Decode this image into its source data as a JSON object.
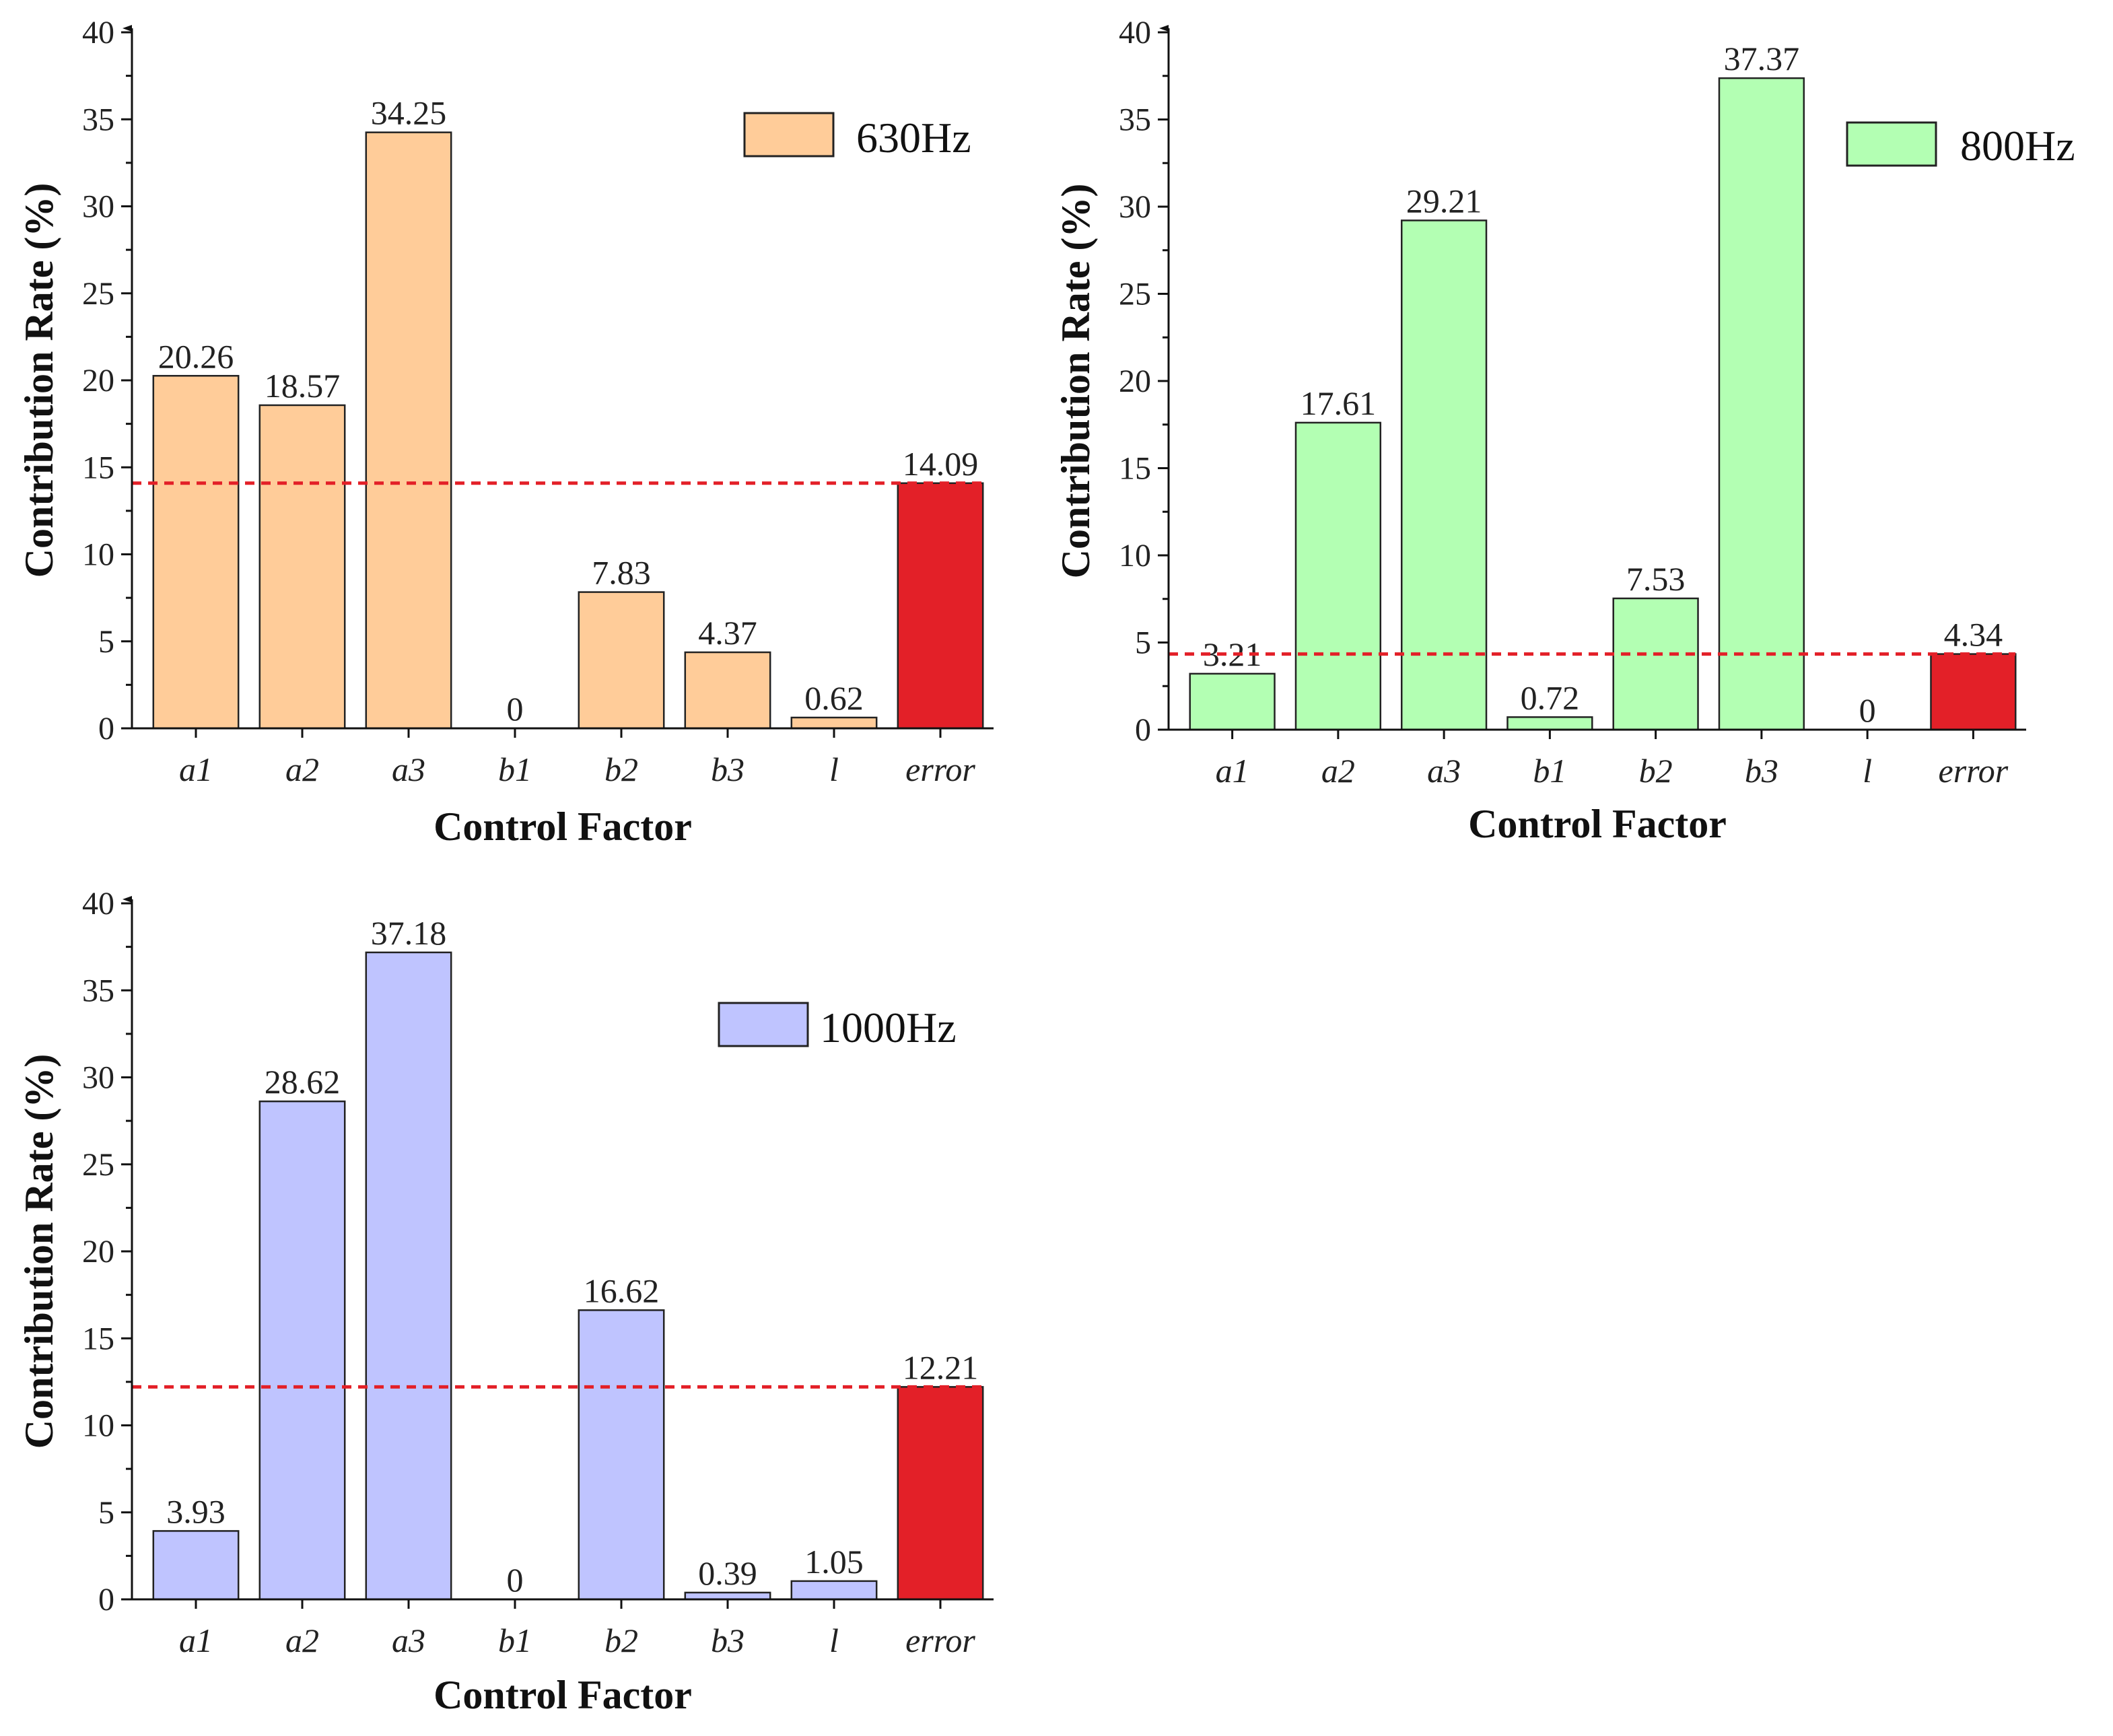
{
  "chart_data": [
    {
      "type": "bar",
      "name": "630Hz",
      "legend_label": "630Hz",
      "legend_position": "top-right",
      "categories": [
        "a1",
        "a2",
        "a3",
        "b1",
        "b2",
        "b3",
        "l",
        "error"
      ],
      "values": [
        20.26,
        18.57,
        34.25,
        0,
        7.83,
        4.37,
        0.62,
        14.09
      ],
      "value_labels": [
        "20.26",
        "18.57",
        "34.25",
        "0",
        "7.83",
        "4.37",
        "0.62",
        "14.09"
      ],
      "bar_color": "#ffcc99",
      "error_color": "#e32028",
      "threshold": 14.09,
      "threshold_color": "#e32028",
      "xlabel": "Control Factor",
      "ylabel": "Contribution Rate (%)",
      "ylim": [
        0,
        40
      ],
      "yticks": [
        "0",
        "5",
        "10",
        "15",
        "20",
        "25",
        "30",
        "35",
        "40"
      ]
    },
    {
      "type": "bar",
      "name": "800Hz",
      "legend_label": "800Hz",
      "legend_position": "top-right",
      "categories": [
        "a1",
        "a2",
        "a3",
        "b1",
        "b2",
        "b3",
        "l",
        "error"
      ],
      "values": [
        3.21,
        17.61,
        29.21,
        0.72,
        7.53,
        37.37,
        0,
        4.34
      ],
      "value_labels": [
        "3.21",
        "17.61",
        "29.21",
        "0.72",
        "7.53",
        "37.37",
        "0",
        "4.34"
      ],
      "bar_color": "#b3ffb3",
      "error_color": "#e32028",
      "threshold": 4.34,
      "threshold_color": "#e32028",
      "xlabel": "Control Factor",
      "ylabel": "Contribution Rate (%)",
      "ylim": [
        0,
        40
      ],
      "yticks": [
        "0",
        "5",
        "10",
        "15",
        "20",
        "25",
        "30",
        "35",
        "40"
      ]
    },
    {
      "type": "bar",
      "name": "1000Hz",
      "legend_label": "1000Hz",
      "legend_position": "top-right",
      "categories": [
        "a1",
        "a2",
        "a3",
        "b1",
        "b2",
        "b3",
        "l",
        "error"
      ],
      "values": [
        3.93,
        28.62,
        37.18,
        0,
        16.62,
        0.39,
        1.05,
        12.21
      ],
      "value_labels": [
        "3.93",
        "28.62",
        "37.18",
        "0",
        "16.62",
        "0.39",
        "1.05",
        "12.21"
      ],
      "bar_color": "#bfc4ff",
      "error_color": "#e32028",
      "threshold": 12.21,
      "threshold_color": "#e32028",
      "xlabel": "Control Factor",
      "ylabel": "Contribution Rate (%)",
      "ylim": [
        0,
        40
      ],
      "yticks": [
        "0",
        "5",
        "10",
        "15",
        "20",
        "25",
        "30",
        "35",
        "40"
      ]
    }
  ]
}
